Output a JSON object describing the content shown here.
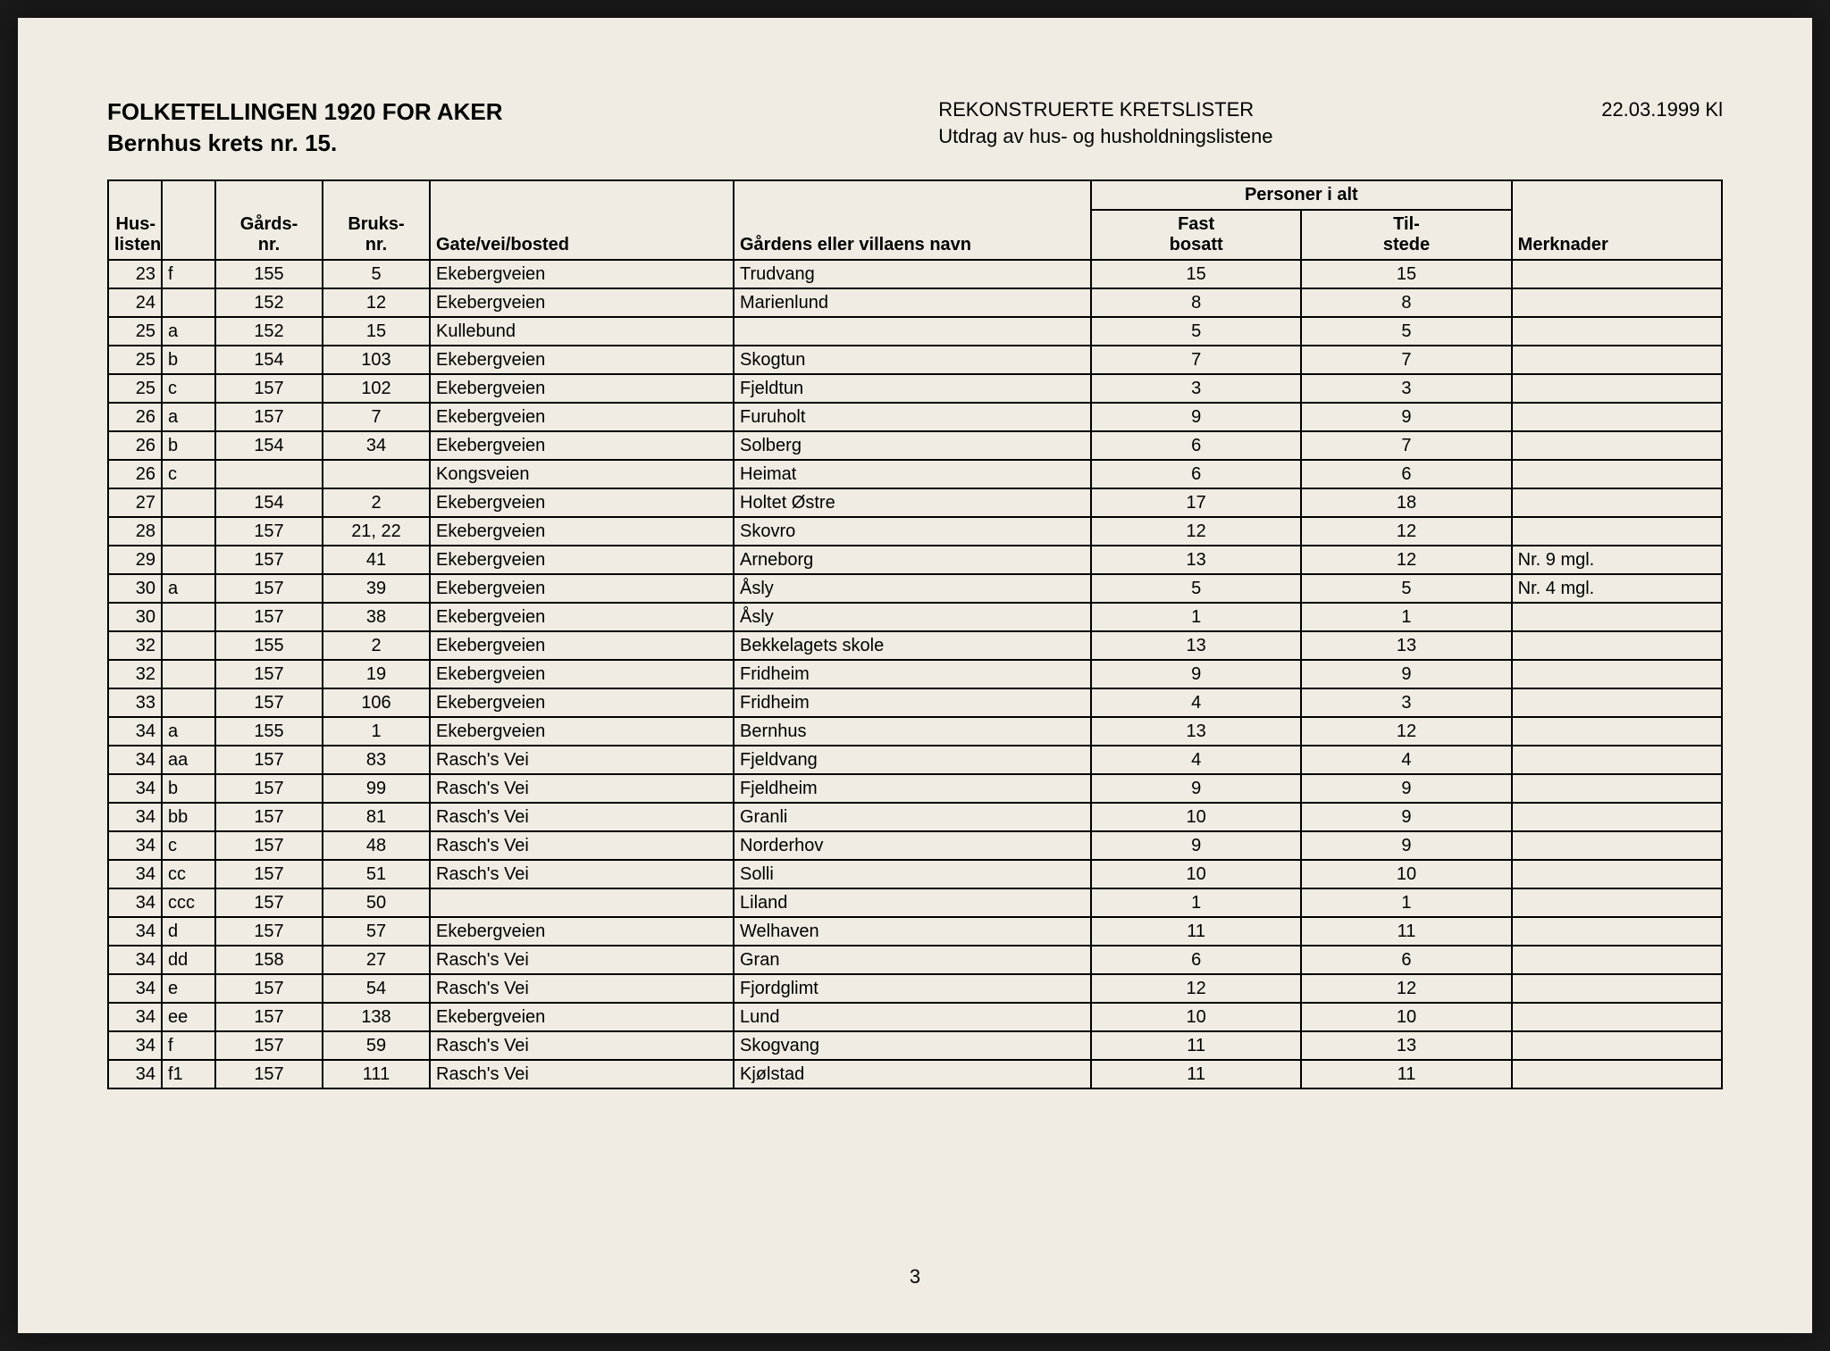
{
  "header": {
    "title_line1": "FOLKETELLINGEN 1920 FOR AKER",
    "title_line2": "Bernhus krets nr. 15.",
    "center_line1": "REKONSTRUERTE KRETSLISTER",
    "center_line2": "Utdrag av hus- og husholdningslistene",
    "date": "22.03.1999  Kl"
  },
  "columns": {
    "huslistenr": "Hus-\nlistenr.",
    "huslistenr_l1": "Hus-",
    "huslistenr_l2": "listenr.",
    "gardsnr_l1": "Gårds-",
    "gardsnr_l2": "nr.",
    "bruksnr_l1": "Bruks-",
    "bruksnr_l2": "nr.",
    "gate": "Gate/vei/bosted",
    "navn": "Gårdens eller villaens navn",
    "personer_group": "Personer i alt",
    "fast_l1": "Fast",
    "fast_l2": "bosatt",
    "til_l1": "Til-",
    "til_l2": "stede",
    "merknader": "Merknader"
  },
  "rows": [
    {
      "num": "23",
      "suf": "f",
      "gards": "155",
      "bruks": "5",
      "gate": "Ekebergveien",
      "navn": "Trudvang",
      "fast": "15",
      "til": "15",
      "merk": ""
    },
    {
      "num": "24",
      "suf": "",
      "gards": "152",
      "bruks": "12",
      "gate": "Ekebergveien",
      "navn": "Marienlund",
      "fast": "8",
      "til": "8",
      "merk": ""
    },
    {
      "num": "25",
      "suf": "a",
      "gards": "152",
      "bruks": "15",
      "gate": "Kullebund",
      "navn": "",
      "fast": "5",
      "til": "5",
      "merk": ""
    },
    {
      "num": "25",
      "suf": "b",
      "gards": "154",
      "bruks": "103",
      "gate": "Ekebergveien",
      "navn": "Skogtun",
      "fast": "7",
      "til": "7",
      "merk": ""
    },
    {
      "num": "25",
      "suf": "c",
      "gards": "157",
      "bruks": "102",
      "gate": "Ekebergveien",
      "navn": "Fjeldtun",
      "fast": "3",
      "til": "3",
      "merk": ""
    },
    {
      "num": "26",
      "suf": "a",
      "gards": "157",
      "bruks": "7",
      "gate": "Ekebergveien",
      "navn": "Furuholt",
      "fast": "9",
      "til": "9",
      "merk": ""
    },
    {
      "num": "26",
      "suf": "b",
      "gards": "154",
      "bruks": "34",
      "gate": "Ekebergveien",
      "navn": "Solberg",
      "fast": "6",
      "til": "7",
      "merk": ""
    },
    {
      "num": "26",
      "suf": "c",
      "gards": "",
      "bruks": "",
      "gate": "Kongsveien",
      "navn": "Heimat",
      "fast": "6",
      "til": "6",
      "merk": ""
    },
    {
      "num": "27",
      "suf": "",
      "gards": "154",
      "bruks": "2",
      "gate": "Ekebergveien",
      "navn": "Holtet Østre",
      "fast": "17",
      "til": "18",
      "merk": ""
    },
    {
      "num": "28",
      "suf": "",
      "gards": "157",
      "bruks": "21, 22",
      "gate": "Ekebergveien",
      "navn": "Skovro",
      "fast": "12",
      "til": "12",
      "merk": ""
    },
    {
      "num": "29",
      "suf": "",
      "gards": "157",
      "bruks": "41",
      "gate": "Ekebergveien",
      "navn": "Arneborg",
      "fast": "13",
      "til": "12",
      "merk": "Nr. 9 mgl."
    },
    {
      "num": "30",
      "suf": "a",
      "gards": "157",
      "bruks": "39",
      "gate": "Ekebergveien",
      "navn": "Åsly",
      "fast": "5",
      "til": "5",
      "merk": "Nr. 4 mgl."
    },
    {
      "num": "30",
      "suf": "",
      "gards": "157",
      "bruks": "38",
      "gate": "Ekebergveien",
      "navn": "Åsly",
      "fast": "1",
      "til": "1",
      "merk": ""
    },
    {
      "num": "32",
      "suf": "",
      "gards": "155",
      "bruks": "2",
      "gate": "Ekebergveien",
      "navn": "Bekkelagets skole",
      "fast": "13",
      "til": "13",
      "merk": ""
    },
    {
      "num": "32",
      "suf": "",
      "gards": "157",
      "bruks": "19",
      "gate": "Ekebergveien",
      "navn": "Fridheim",
      "fast": "9",
      "til": "9",
      "merk": ""
    },
    {
      "num": "33",
      "suf": "",
      "gards": "157",
      "bruks": "106",
      "gate": "Ekebergveien",
      "navn": "Fridheim",
      "fast": "4",
      "til": "3",
      "merk": ""
    },
    {
      "num": "34",
      "suf": "a",
      "gards": "155",
      "bruks": "1",
      "gate": "Ekebergveien",
      "navn": "Bernhus",
      "fast": "13",
      "til": "12",
      "merk": ""
    },
    {
      "num": "34",
      "suf": "aa",
      "gards": "157",
      "bruks": "83",
      "gate": "Rasch's Vei",
      "navn": "Fjeldvang",
      "fast": "4",
      "til": "4",
      "merk": ""
    },
    {
      "num": "34",
      "suf": "b",
      "gards": "157",
      "bruks": "99",
      "gate": "Rasch's Vei",
      "navn": "Fjeldheim",
      "fast": "9",
      "til": "9",
      "merk": ""
    },
    {
      "num": "34",
      "suf": "bb",
      "gards": "157",
      "bruks": "81",
      "gate": "Rasch's Vei",
      "navn": "Granli",
      "fast": "10",
      "til": "9",
      "merk": ""
    },
    {
      "num": "34",
      "suf": "c",
      "gards": "157",
      "bruks": "48",
      "gate": "Rasch's Vei",
      "navn": "Norderhov",
      "fast": "9",
      "til": "9",
      "merk": ""
    },
    {
      "num": "34",
      "suf": "cc",
      "gards": "157",
      "bruks": "51",
      "gate": "Rasch's Vei",
      "navn": "Solli",
      "fast": "10",
      "til": "10",
      "merk": ""
    },
    {
      "num": "34",
      "suf": "ccc",
      "gards": "157",
      "bruks": "50",
      "gate": "",
      "navn": "Liland",
      "fast": "1",
      "til": "1",
      "merk": ""
    },
    {
      "num": "34",
      "suf": "d",
      "gards": "157",
      "bruks": "57",
      "gate": "Ekebergveien",
      "navn": "Welhaven",
      "fast": "11",
      "til": "11",
      "merk": ""
    },
    {
      "num": "34",
      "suf": "dd",
      "gards": "158",
      "bruks": "27",
      "gate": "Rasch's Vei",
      "navn": "Gran",
      "fast": "6",
      "til": "6",
      "merk": ""
    },
    {
      "num": "34",
      "suf": "e",
      "gards": "157",
      "bruks": "54",
      "gate": "Rasch's Vei",
      "navn": "Fjordglimt",
      "fast": "12",
      "til": "12",
      "merk": ""
    },
    {
      "num": "34",
      "suf": "ee",
      "gards": "157",
      "bruks": "138",
      "gate": "Ekebergveien",
      "navn": "Lund",
      "fast": "10",
      "til": "10",
      "merk": ""
    },
    {
      "num": "34",
      "suf": "f",
      "gards": "157",
      "bruks": "59",
      "gate": "Rasch's Vei",
      "navn": "Skogvang",
      "fast": "11",
      "til": "13",
      "merk": ""
    },
    {
      "num": "34",
      "suf": "f1",
      "gards": "157",
      "bruks": "111",
      "gate": "Rasch's Vei",
      "navn": "Kjølstad",
      "fast": "11",
      "til": "11",
      "merk": ""
    }
  ],
  "page_number": "3",
  "styling": {
    "page_bg": "#f0ece3",
    "frame_bg": "#1a1a1a",
    "text_color": "#000000",
    "border_color": "#000000",
    "title_fontsize": 26,
    "header_fontsize": 22,
    "cell_fontsize": 20,
    "border_width": 2,
    "font_family": "Arial"
  }
}
